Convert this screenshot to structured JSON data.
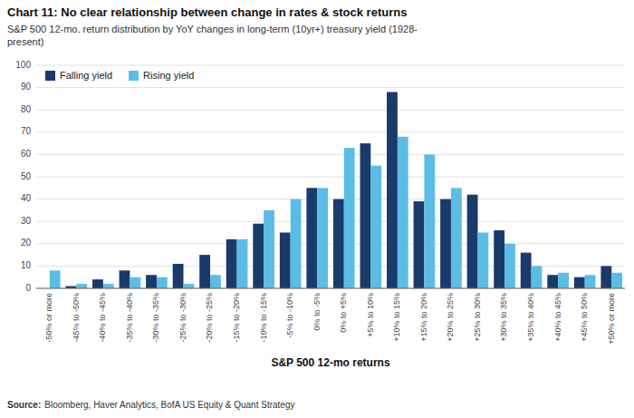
{
  "chart_data": {
    "type": "bar",
    "title": "Chart 11: No clear relationship between change in rates & stock returns",
    "subtitle": "S&P 500 12-mo. return distribution by YoY changes in long-term (10yr+) treasury yield (1928-\npresent)",
    "x_label": "S&P 500 12-mo returns",
    "source": {
      "label": "Source:",
      "text": "Bloomberg, Haver Analytics, BofA US Equity & Quant Strategy"
    },
    "categories": [
      "-50% or more",
      "-45% to -50%",
      "-40% to -45%",
      "-35% to -40%",
      "-30% to -35%",
      "-25% to -30%",
      "-20% to -25%",
      "-15% to -20%",
      "-10% to -15%",
      "-5% to -10%",
      "0% to -5%",
      "0% to +5%",
      "+5% to 10%",
      "+10% to 15%",
      "+15% to 20%",
      "+20% to 25%",
      "+25% to 30%",
      "+30% to 35%",
      "+35% to 40%",
      "+40% to 45%",
      "+45% to 50%",
      "+50% or more"
    ],
    "series": [
      {
        "name": "Falling yield",
        "color": "#1a3a6b",
        "values": [
          0,
          1,
          4,
          8,
          6,
          11,
          15,
          22,
          29,
          25,
          45,
          40,
          65,
          88,
          39,
          40,
          42,
          26,
          16,
          6,
          5,
          10
        ]
      },
      {
        "name": "Rising yield",
        "color": "#5bbde4",
        "values": [
          8,
          2,
          2,
          5,
          5,
          2,
          6,
          22,
          35,
          40,
          45,
          63,
          55,
          68,
          60,
          45,
          25,
          20,
          10,
          7,
          6,
          7
        ]
      }
    ],
    "ylim": [
      0,
      100
    ],
    "yticks": [
      0,
      10,
      20,
      30,
      40,
      50,
      60,
      70,
      80,
      90,
      100
    ],
    "grid": true,
    "legend": "upper left"
  }
}
